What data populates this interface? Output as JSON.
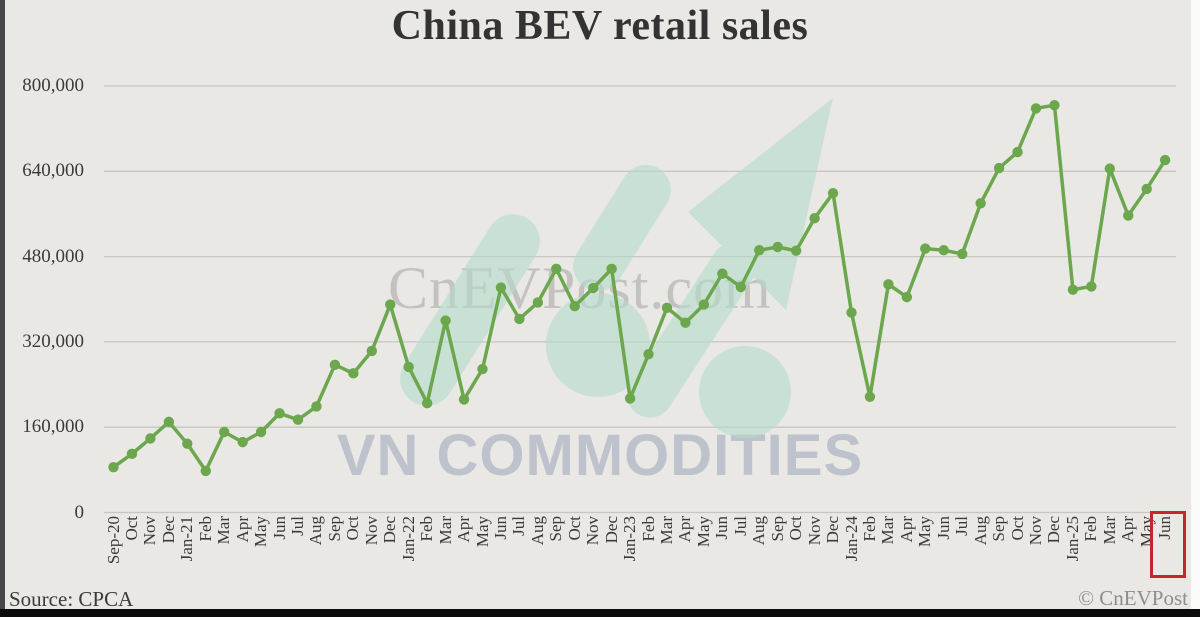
{
  "title": {
    "text": "China BEV retail sales"
  },
  "watermarks": {
    "cnevpost": "CnEVPost.com",
    "vn_commodities": "VN COMMODITIES",
    "arrow_color": "#b5dbc9"
  },
  "footer": {
    "source": "Source: CPCA",
    "copyright": "© CnEVPost"
  },
  "annotations": {
    "highlighted_x_label": "Jun",
    "highlight_color": "#c4262c"
  },
  "chart_data": {
    "type": "line",
    "title": "China BEV retail sales",
    "xlabel": "",
    "ylabel": "",
    "ylim": [
      0,
      800000
    ],
    "grid": true,
    "legend_position": "none",
    "series_color": "#6ca74e",
    "grid_color": "#c7c6c3",
    "y_tick_values": [
      0,
      160000,
      320000,
      480000,
      640000,
      800000
    ],
    "y_tick_labels": [
      "0",
      "160,000",
      "320,000",
      "480,000",
      "640,000",
      "800,000"
    ],
    "categories": [
      "Sep-20",
      "Oct",
      "Nov",
      "Dec",
      "Jan-21",
      "Feb",
      "Mar",
      "Apr",
      "May",
      "Jun",
      "Jul",
      "Aug",
      "Sep",
      "Oct",
      "Nov",
      "Dec",
      "Jan-22",
      "Feb",
      "Mar",
      "Apr",
      "May",
      "Jun",
      "Jul",
      "Aug",
      "Sep",
      "Oct",
      "Nov",
      "Dec",
      "Jan-23",
      "Feb",
      "Mar",
      "Apr",
      "May",
      "Jun",
      "Jul",
      "Aug",
      "Sep",
      "Oct",
      "Nov",
      "Dec",
      "Jan-24",
      "Feb",
      "Mar",
      "Apr",
      "May",
      "Jun",
      "Jul",
      "Aug",
      "Sep",
      "Oct",
      "Nov",
      "Dec",
      "Jan-25",
      "Feb",
      "Mar",
      "Apr",
      "May",
      "Jun"
    ],
    "values": [
      85000,
      110000,
      139000,
      170000,
      129000,
      78000,
      151000,
      132000,
      151000,
      186000,
      174000,
      199000,
      277000,
      261000,
      303000,
      390000,
      273000,
      205000,
      360000,
      212000,
      269000,
      422000,
      363000,
      394000,
      457000,
      387000,
      421000,
      457000,
      214000,
      297000,
      384000,
      356000,
      390000,
      448000,
      423000,
      492000,
      498000,
      491000,
      552000,
      599000,
      375000,
      217000,
      428000,
      404000,
      495000,
      492000,
      485000,
      580000,
      646000,
      676000,
      758000,
      764000,
      418000,
      424000,
      645000,
      557000,
      607000,
      661000
    ]
  }
}
